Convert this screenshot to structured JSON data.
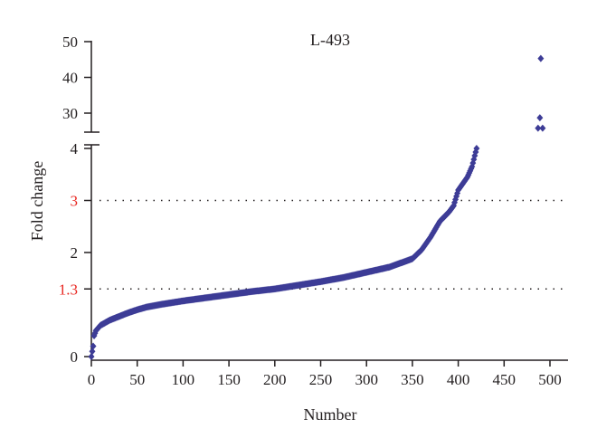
{
  "chart_data": {
    "type": "scatter",
    "title": "L-493",
    "xlabel": "Number",
    "ylabel": "Fold change",
    "xlim": [
      0,
      520
    ],
    "ylim_lower": [
      0,
      4
    ],
    "ylim_upper": [
      25,
      50
    ],
    "axis_break": true,
    "grid": false,
    "x_ticks": [
      "0",
      "50",
      "100",
      "150",
      "200",
      "250",
      "300",
      "350",
      "400",
      "450",
      "500"
    ],
    "y_ticks_lower": [
      {
        "value": 0,
        "label": "0",
        "highlight": false
      },
      {
        "value": 1.3,
        "label": "1.3",
        "highlight": true
      },
      {
        "value": 2,
        "label": "2",
        "highlight": false
      },
      {
        "value": 3,
        "label": "3",
        "highlight": true
      },
      {
        "value": 4,
        "label": "4",
        "highlight": false
      }
    ],
    "y_ticks_upper": [
      {
        "value": 30,
        "label": "30"
      },
      {
        "value": 40,
        "label": "40"
      },
      {
        "value": 50,
        "label": "50"
      }
    ],
    "reference_lines": [
      1.3,
      3
    ],
    "marker_color": "#3d3c96",
    "highlight_color": "#e8251f",
    "curve_keypoints": [
      [
        0,
        0
      ],
      [
        2,
        0.2
      ],
      [
        3,
        0.4
      ],
      [
        5,
        0.5
      ],
      [
        10,
        0.6
      ],
      [
        20,
        0.7
      ],
      [
        30,
        0.77
      ],
      [
        40,
        0.84
      ],
      [
        50,
        0.9
      ],
      [
        60,
        0.95
      ],
      [
        75,
        1.0
      ],
      [
        100,
        1.07
      ],
      [
        125,
        1.13
      ],
      [
        150,
        1.19
      ],
      [
        175,
        1.25
      ],
      [
        200,
        1.3
      ],
      [
        225,
        1.37
      ],
      [
        250,
        1.44
      ],
      [
        275,
        1.52
      ],
      [
        300,
        1.62
      ],
      [
        325,
        1.72
      ],
      [
        350,
        1.88
      ],
      [
        360,
        2.05
      ],
      [
        370,
        2.3
      ],
      [
        380,
        2.6
      ],
      [
        390,
        2.78
      ],
      [
        395,
        2.9
      ],
      [
        400,
        3.2
      ],
      [
        410,
        3.45
      ],
      [
        415,
        3.65
      ],
      [
        420,
        4.0
      ]
    ],
    "outliers": [
      [
        487,
        25.8
      ],
      [
        492,
        25.8
      ],
      [
        489,
        28.7
      ],
      [
        490,
        45.3
      ]
    ]
  }
}
